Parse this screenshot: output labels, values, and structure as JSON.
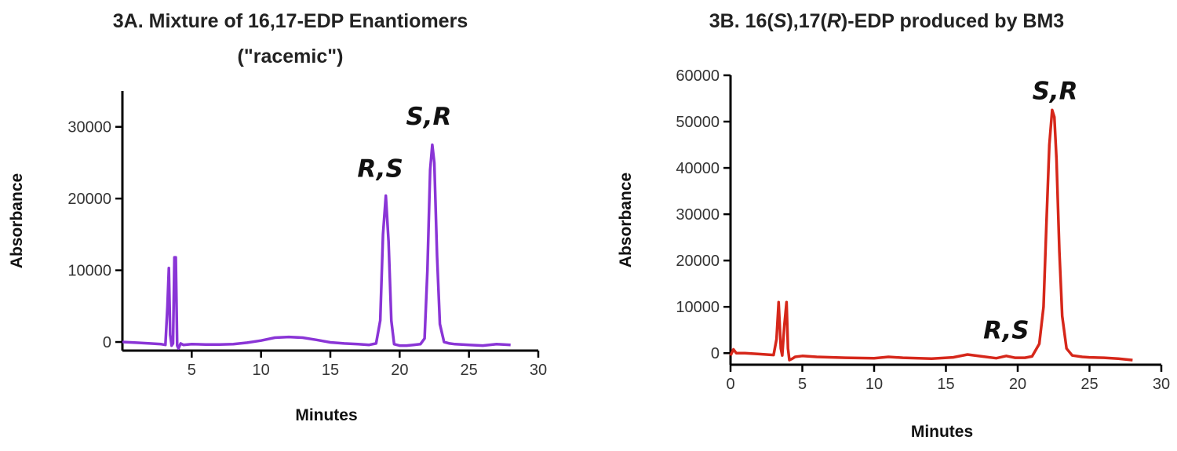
{
  "chart_data": [
    {
      "type": "line",
      "title": "3A. Mixture of 16,17-EDP Enantiomers",
      "subtitle": "(\"racemic\")",
      "xlabel": "Minutes",
      "ylabel": "Absorbance",
      "xlim": [
        0,
        30
      ],
      "ylim": [
        -1200,
        35000
      ],
      "xticks": [
        5,
        10,
        15,
        20,
        25,
        30
      ],
      "yticks": [
        0,
        10000,
        20000,
        30000
      ],
      "color": "#8a35d6",
      "annotations": [
        {
          "text": "R,S",
          "x": 18.6,
          "y": 23000
        },
        {
          "text": "S,R",
          "x": 22.1,
          "y": 30300
        }
      ],
      "series": [
        {
          "x": [
            0,
            1,
            2,
            2.8,
            3.1,
            3.25,
            3.35,
            3.45,
            3.55,
            3.65,
            3.75,
            3.85,
            3.95,
            4.05,
            4.2,
            4.4,
            5,
            6,
            7,
            8,
            9,
            10,
            11,
            12,
            13,
            14,
            15,
            16,
            17,
            17.8,
            18.3,
            18.6,
            18.8,
            19.0,
            19.2,
            19.4,
            19.6,
            20,
            20.5,
            21,
            21.5,
            21.8,
            22.0,
            22.2,
            22.35,
            22.5,
            22.7,
            22.9,
            23.2,
            23.6,
            24,
            25,
            26,
            27,
            28
          ],
          "y": [
            0,
            -100,
            -200,
            -300,
            -400,
            5000,
            10300,
            1000,
            -500,
            -200,
            11800,
            11800,
            -500,
            -900,
            -200,
            -400,
            -300,
            -350,
            -350,
            -300,
            -100,
            200,
            600,
            700,
            600,
            300,
            -50,
            -200,
            -300,
            -400,
            -200,
            3000,
            15000,
            20400,
            14000,
            3000,
            -300,
            -500,
            -500,
            -400,
            -300,
            500,
            10000,
            24000,
            27500,
            25000,
            12000,
            2500,
            0,
            -200,
            -300,
            -400,
            -500,
            -300,
            -400
          ]
        }
      ]
    },
    {
      "type": "line",
      "title_pre": "3B. 16(",
      "title_s": "S",
      "title_mid": "),17(",
      "title_r": "R",
      "title_post": ")-EDP produced by BM3",
      "xlabel": "Minutes",
      "ylabel": "Absorbance",
      "xlim": [
        0,
        30
      ],
      "ylim": [
        -2500,
        60000
      ],
      "xticks": [
        0,
        5,
        10,
        15,
        20,
        25,
        30
      ],
      "yticks": [
        0,
        10000,
        20000,
        30000,
        40000,
        50000,
        60000
      ],
      "color": "#d6271a",
      "annotations": [
        {
          "text": "S,R",
          "x": 22.6,
          "y": 54800
        },
        {
          "text": "R,S",
          "x": 19.2,
          "y": 3200
        }
      ],
      "series": [
        {
          "x": [
            0,
            0.2,
            0.4,
            1,
            2,
            3,
            3.2,
            3.35,
            3.5,
            3.6,
            3.75,
            3.9,
            4.0,
            4.1,
            4.3,
            4.5,
            5,
            6,
            8,
            10,
            11,
            12,
            14,
            15.5,
            16.5,
            17.5,
            18.5,
            19.2,
            19.8,
            20.5,
            21,
            21.5,
            21.8,
            22.0,
            22.2,
            22.4,
            22.55,
            22.7,
            22.9,
            23.1,
            23.4,
            23.8,
            24.5,
            25,
            26,
            27,
            28
          ],
          "y": [
            -500,
            800,
            0,
            0,
            -200,
            -400,
            3000,
            11000,
            1000,
            -500,
            6000,
            11000,
            1000,
            -1500,
            -1200,
            -800,
            -600,
            -800,
            -1000,
            -1100,
            -800,
            -1000,
            -1200,
            -900,
            -300,
            -700,
            -1100,
            -600,
            -1000,
            -1000,
            -700,
            2000,
            10000,
            28000,
            45000,
            52500,
            51000,
            42000,
            22000,
            8000,
            1000,
            -500,
            -800,
            -900,
            -1000,
            -1200,
            -1500
          ]
        }
      ]
    }
  ]
}
